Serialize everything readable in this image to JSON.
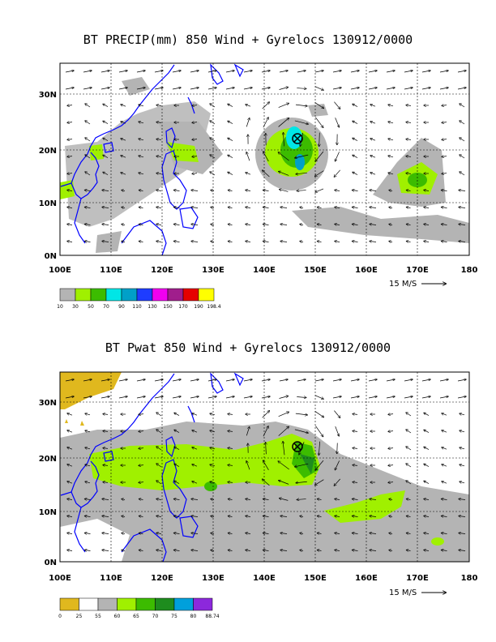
{
  "panel1": {
    "title": "BT PRECIP(mm) 850 Wind + Gyrelocs 130912/0000",
    "lat_labels": [
      "0N",
      "10N",
      "20N",
      "30N"
    ],
    "lon_labels": [
      "100E",
      "110E",
      "120E",
      "130E",
      "140E",
      "150E",
      "160E",
      "170E",
      "180"
    ],
    "scale_label": "15 M/S",
    "colorbar": {
      "labels": [
        "10",
        "30",
        "50",
        "70",
        "90",
        "110",
        "130",
        "150",
        "170",
        "190",
        "198.4"
      ],
      "colors": [
        "#b4b4b4",
        "#a0f000",
        "#3cbc00",
        "#00e6e6",
        "#00a0c8",
        "#1e3cff",
        "#f000f0",
        "#a01e8c",
        "#e60000",
        "#ffff00"
      ]
    }
  },
  "panel2": {
    "title": "BT Pwat 850 Wind + Gyrelocs 130912/0000",
    "lat_labels": [
      "0N",
      "10N",
      "20N",
      "30N"
    ],
    "lon_labels": [
      "100E",
      "110E",
      "120E",
      "130E",
      "140E",
      "150E",
      "160E",
      "170E",
      "180"
    ],
    "scale_label": "15 M/S",
    "colorbar": {
      "labels": [
        "0",
        "25",
        "55",
        "60",
        "65",
        "70",
        "75",
        "80",
        "88.74"
      ],
      "colors": [
        "#e0b81e",
        "#ffffff",
        "#b4b4b4",
        "#a0f000",
        "#3cbc00",
        "#1e8c1e",
        "#00a0dc",
        "#8c28dc"
      ]
    }
  },
  "gyre_marker": {
    "lon": 146,
    "lat": 22
  },
  "colors": {
    "coast": "#0000ff",
    "grid": "#000000"
  }
}
